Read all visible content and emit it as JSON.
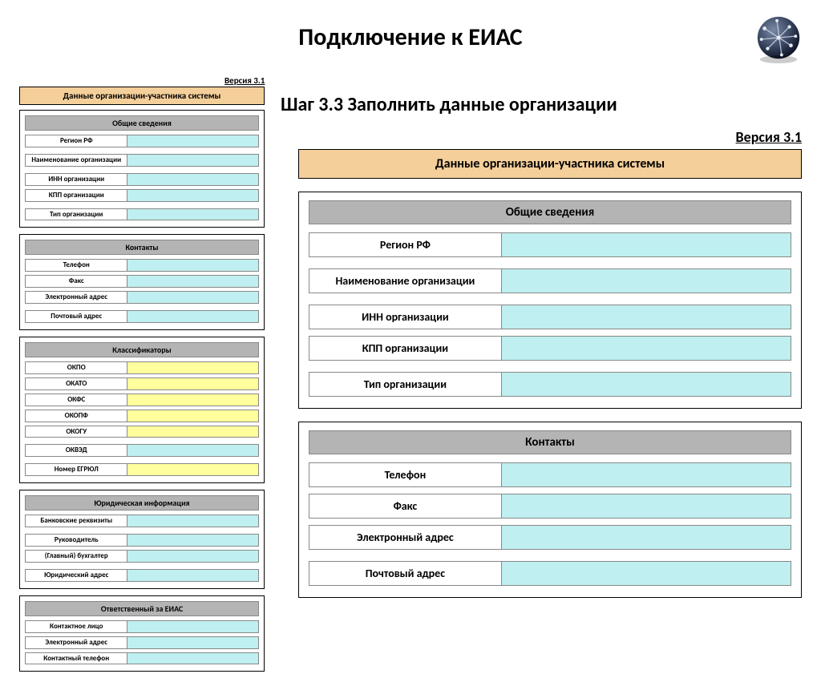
{
  "colors": {
    "banner_bg": "#f4cf9a",
    "section_head_bg": "#b4b4b4",
    "input_cyan": "#bfeff0",
    "input_yellow": "#ffff9e",
    "border": "#888888",
    "panel_border": "#000000",
    "page_bg": "#ffffff",
    "text": "#000000"
  },
  "typography": {
    "page_title_size_pt": 22,
    "step_title_size_pt": 18,
    "main_label_size_pt": 11,
    "thumb_label_size_pt": 7,
    "version_size_pt": 13
  },
  "page_title": "Подключение к ЕИАС",
  "step_title": "Шаг 3.3 Заполнить данные организации",
  "version_label": "Версия 3.1",
  "banner": "Данные организации-участника системы",
  "thumb": {
    "sections": [
      {
        "title": "Общие сведения",
        "rows": [
          {
            "label": "Регион РФ",
            "style": "cyan",
            "gap_after": true
          },
          {
            "label": "Наименование организации",
            "style": "cyan",
            "gap_after": true
          },
          {
            "label": "ИНН организации",
            "style": "cyan",
            "gap_after": false
          },
          {
            "label": "КПП организации",
            "style": "cyan",
            "gap_after": true
          },
          {
            "label": "Тип организации",
            "style": "cyan",
            "gap_after": false
          }
        ]
      },
      {
        "title": "Контакты",
        "rows": [
          {
            "label": "Телефон",
            "style": "cyan",
            "gap_after": false
          },
          {
            "label": "Факс",
            "style": "cyan",
            "gap_after": false
          },
          {
            "label": "Электронный адрес",
            "style": "cyan",
            "gap_after": true
          },
          {
            "label": "Почтовый адрес",
            "style": "cyan",
            "gap_after": false
          }
        ]
      },
      {
        "title": "Классификаторы",
        "rows": [
          {
            "label": "ОКПО",
            "style": "yellow",
            "gap_after": false
          },
          {
            "label": "ОКАТО",
            "style": "yellow",
            "gap_after": false
          },
          {
            "label": "ОКФС",
            "style": "yellow",
            "gap_after": false
          },
          {
            "label": "ОКОПФ",
            "style": "yellow",
            "gap_after": false
          },
          {
            "label": "ОКОГУ",
            "style": "yellow",
            "gap_after": true
          },
          {
            "label": "ОКВЭД",
            "style": "cyan",
            "gap_after": true
          },
          {
            "label": "Номер ЕГРЮЛ",
            "style": "yellow",
            "gap_after": false
          }
        ]
      },
      {
        "title": "Юридическая информация",
        "rows": [
          {
            "label": "Банковские реквизиты",
            "style": "cyan",
            "gap_after": true
          },
          {
            "label": "Руководитель",
            "style": "cyan",
            "gap_after": false
          },
          {
            "label": "(Главный) бухгалтер",
            "style": "cyan",
            "gap_after": true
          },
          {
            "label": "Юридический адрес",
            "style": "cyan",
            "gap_after": false
          }
        ]
      },
      {
        "title": "Ответственный за ЕИАС",
        "rows": [
          {
            "label": "Контактное лицо",
            "style": "cyan",
            "gap_after": false
          },
          {
            "label": "Электронный адрес",
            "style": "cyan",
            "gap_after": false
          },
          {
            "label": "Контактный телефон",
            "style": "cyan",
            "gap_after": false
          }
        ]
      }
    ]
  },
  "main": {
    "sections": [
      {
        "title": "Общие сведения",
        "rows": [
          {
            "label": "Регион РФ",
            "gap_after": true
          },
          {
            "label": "Наименование организации",
            "gap_after": true
          },
          {
            "label": "ИНН организации",
            "gap_after": false
          },
          {
            "label": "КПП организации",
            "gap_after": true
          },
          {
            "label": "Тип организации",
            "gap_after": false
          }
        ]
      },
      {
        "title": "Контакты",
        "rows": [
          {
            "label": "Телефон",
            "gap_after": false
          },
          {
            "label": "Факс",
            "gap_after": false
          },
          {
            "label": "Электронный адрес",
            "gap_after": true
          },
          {
            "label": "Почтовый адрес",
            "gap_after": false
          }
        ]
      }
    ]
  }
}
